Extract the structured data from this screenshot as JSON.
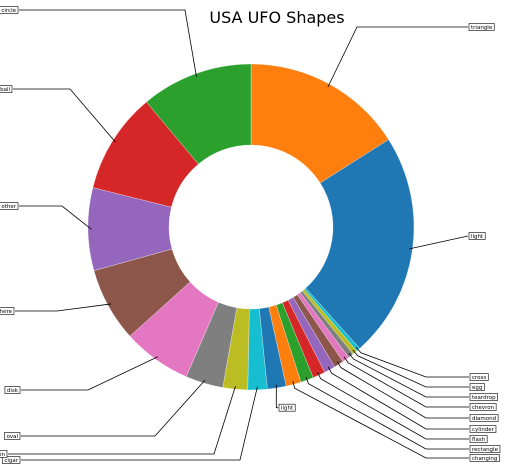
{
  "chart_data": {
    "type": "pie",
    "style": "donut",
    "title": "USA UFO Shapes",
    "start_angle_deg": 90,
    "direction": "clockwise",
    "slices": [
      {
        "label": "triangle",
        "value": 15.0,
        "color": "#ff7f0e"
      },
      {
        "label": "light",
        "value": 21.0,
        "color": "#1f77b4"
      },
      {
        "label": "cross",
        "value": 0.35,
        "color": "#17becf"
      },
      {
        "label": "egg",
        "value": 0.45,
        "color": "#bcbd22"
      },
      {
        "label": "teardrop",
        "value": 0.5,
        "color": "#7f7f7f"
      },
      {
        "label": "chevron",
        "value": 0.65,
        "color": "#e377c2"
      },
      {
        "label": "diamond",
        "value": 0.9,
        "color": "#8c564b"
      },
      {
        "label": "cylinder",
        "value": 1.05,
        "color": "#9467bd"
      },
      {
        "label": "flash",
        "value": 1.15,
        "color": "#d62728"
      },
      {
        "label": "rectangle",
        "value": 1.2,
        "color": "#2ca02c"
      },
      {
        "label": "changing",
        "value": 1.4,
        "color": "#ff7f0e"
      },
      {
        "label": "light",
        "value": 1.75,
        "color": "#1f77b4"
      },
      {
        "label": "cigar",
        "value": 1.8,
        "color": "#17becf"
      },
      {
        "label": "formation",
        "value": 2.3,
        "color": "#bcbd22"
      },
      {
        "label": "oval",
        "value": 3.5,
        "color": "#7f7f7f"
      },
      {
        "label": "disk",
        "value": 6.4,
        "color": "#e377c2"
      },
      {
        "label": "sphere",
        "value": 6.9,
        "color": "#8c564b"
      },
      {
        "label": "other",
        "value": 7.7,
        "color": "#9467bd"
      },
      {
        "label": "fireball",
        "value": 9.4,
        "color": "#d62728"
      },
      {
        "label": "circle",
        "value": 10.4,
        "color": "#2ca02c"
      }
    ]
  }
}
